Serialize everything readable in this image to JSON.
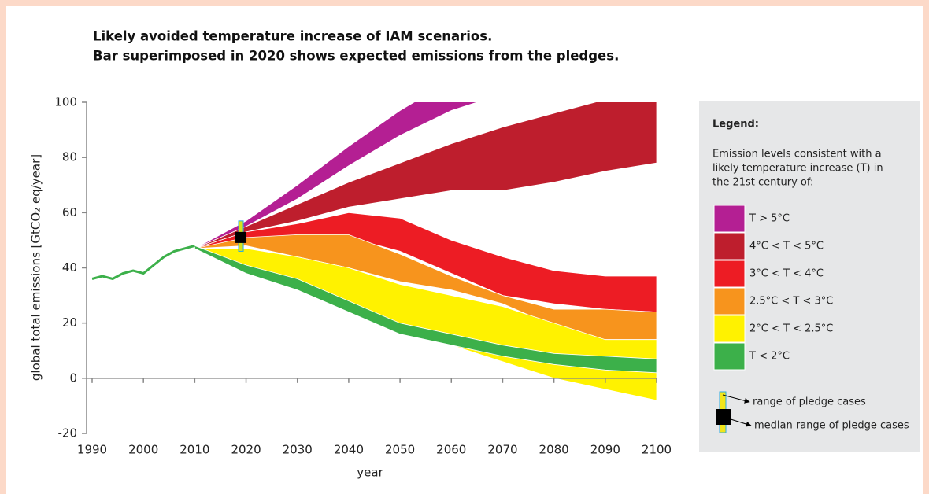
{
  "chart_data": {
    "type": "band",
    "title": [
      "Likely avoided temperature increase of IAM scenarios.",
      "Bar superimposed in 2020 shows expected emissions from the pledges."
    ],
    "y_label": "global total emissions [GtCO₂ eq/year]",
    "x_label": "year",
    "xlim": [
      1990,
      2100
    ],
    "xticks": [
      1990,
      2000,
      2010,
      2020,
      2030,
      2040,
      2050,
      2060,
      2070,
      2080,
      2090,
      2100
    ],
    "ylim": [
      -20,
      100
    ],
    "yticks": [
      -20,
      0,
      20,
      40,
      60,
      80,
      100
    ],
    "history": {
      "color": "#3cb04a",
      "x": [
        1990,
        1992,
        1994,
        1996,
        1998,
        2000,
        2002,
        2004,
        2006,
        2008,
        2010
      ],
      "values": [
        36,
        37,
        36,
        38,
        39,
        38,
        41,
        44,
        46,
        47,
        48
      ]
    },
    "x": [
      2010,
      2020,
      2030,
      2040,
      2050,
      2060,
      2070,
      2080,
      2090,
      2100
    ],
    "series": [
      {
        "name": "T > 5°C",
        "color": "#b41f93",
        "upper": [
          47,
          57,
          70,
          84,
          97,
          108,
          118,
          null,
          null,
          null
        ],
        "lower": [
          47,
          55,
          65,
          77,
          88,
          97,
          103,
          null,
          null,
          null
        ]
      },
      {
        "name": "4°C < T < 5°C",
        "color": "#be1e2d",
        "upper": [
          47,
          55,
          63,
          71,
          78,
          85,
          91,
          96,
          101,
          106
        ],
        "lower": [
          47,
          53,
          57,
          62,
          65,
          68,
          68,
          71,
          75,
          78
        ]
      },
      {
        "name": "3°C < T < 4°C",
        "color": "#ed1c24",
        "upper": [
          47,
          53,
          56,
          60,
          58,
          50,
          44,
          39,
          37,
          37
        ],
        "lower": [
          47,
          50,
          52,
          51,
          46,
          38,
          30,
          27,
          25,
          24
        ]
      },
      {
        "name": "2.5°C < T < 3°C",
        "color": "#f7941d",
        "upper": [
          47,
          51,
          52,
          52,
          45,
          37,
          30,
          25,
          25,
          24
        ],
        "lower": [
          47,
          48,
          44,
          40,
          35,
          32,
          27,
          19,
          14,
          14
        ]
      },
      {
        "name": "2°C < T < 2.5°C",
        "color": "#fff200",
        "upper": [
          47,
          47,
          44,
          40,
          34,
          30,
          26,
          20,
          14,
          14
        ],
        "lower": [
          47,
          41,
          34,
          27,
          19,
          12,
          6,
          0,
          -4,
          -8
        ]
      },
      {
        "name": "T < 2°C",
        "color": "#3cb04a",
        "upper": [
          48,
          41,
          36,
          28,
          20,
          16,
          12,
          9,
          8,
          7
        ],
        "lower": [
          47,
          38,
          32,
          24,
          16,
          12,
          8,
          5,
          3,
          2
        ]
      }
    ],
    "pledge": {
      "x": 2019,
      "low": 46,
      "high": 57,
      "median": 51,
      "range_label": "range of pledge cases",
      "median_label": "median range of pledge cases"
    },
    "legend_title": "Legend:",
    "legend_description": [
      "Emission levels consistent with a",
      "likely temperature increase (T) in",
      "the 21st century of:"
    ]
  }
}
